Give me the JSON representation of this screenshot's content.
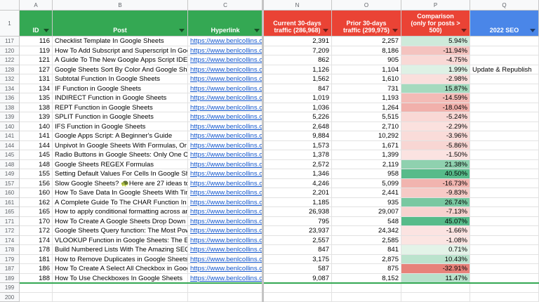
{
  "column_letters": [
    "A",
    "B",
    "C",
    "N",
    "O",
    "P",
    "Q"
  ],
  "header_row_number": "1",
  "headers": [
    "ID",
    "Post",
    "Hyperlink",
    "Current 30-days traffic (286,968)",
    "Prior 30-days traffic (299,975)",
    "Comparison (only for posts > 500)",
    "2022 SEO"
  ],
  "rows": [
    {
      "row_number": "117",
      "id": "116",
      "post": "Checklist Template In Google Sheets",
      "hyperlink": "https://www.benlcollins.com",
      "current": "2,391",
      "prior": "2,257",
      "comparison": "5.94%"
    },
    {
      "row_number": "120",
      "id": "119",
      "post": "How To Add Subscript and Superscript In Google Sheets",
      "hyperlink": "https://www.benlcollins.com",
      "current": "7,209",
      "prior": "8,186",
      "comparison": "-11.94%"
    },
    {
      "row_number": "122",
      "id": "121",
      "post": "A Guide To The New Google Apps Script IDE",
      "hyperlink": "https://www.benlcollins.com",
      "current": "862",
      "prior": "905",
      "comparison": "-4.75%"
    },
    {
      "row_number": "128",
      "id": "127",
      "post": "Google Sheets Sort By Color And Google Sheets Filter By Color",
      "hyperlink": "https://www.benlcollins.com",
      "current": "1,126",
      "prior": "1,104",
      "comparison": "1.99%",
      "seo": "Update & Republish"
    },
    {
      "row_number": "132",
      "id": "131",
      "post": "Subtotal Function In Google Sheets",
      "hyperlink": "https://www.benlcollins.com",
      "current": "1,562",
      "prior": "1,610",
      "comparison": "-2.98%"
    },
    {
      "row_number": "134",
      "id": "134",
      "post": "IF Function in Google Sheets",
      "hyperlink": "https://www.benlcollins.com",
      "current": "847",
      "prior": "731",
      "comparison": "15.87%"
    },
    {
      "row_number": "136",
      "id": "135",
      "post": "INDIRECT Function in Google Sheets",
      "hyperlink": "https://www.benlcollins.com",
      "current": "1,019",
      "prior": "1,193",
      "comparison": "-14.59%"
    },
    {
      "row_number": "138",
      "id": "138",
      "post": "REPT Function in Google Sheets",
      "hyperlink": "https://www.benlcollins.com",
      "current": "1,036",
      "prior": "1,264",
      "comparison": "-18.04%"
    },
    {
      "row_number": "139",
      "id": "139",
      "post": "SPLIT Function in Google Sheets",
      "hyperlink": "https://www.benlcollins.com",
      "current": "5,226",
      "prior": "5,515",
      "comparison": "-5.24%"
    },
    {
      "row_number": "140",
      "id": "140",
      "post": "IFS Function in Google Sheets",
      "hyperlink": "https://www.benlcollins.com",
      "current": "2,648",
      "prior": "2,710",
      "comparison": "-2.29%"
    },
    {
      "row_number": "141",
      "id": "141",
      "post": "Google Apps Script: A Beginner's Guide",
      "hyperlink": "https://www.benlcollins.com",
      "current": "9,884",
      "prior": "10,292",
      "comparison": "-3.96%"
    },
    {
      "row_number": "144",
      "id": "144",
      "post": "Unpivot In Google Sheets With Formulas, Or How To Turn Wide Data Into Tall Data",
      "hyperlink": "https://www.benlcollins.com",
      "current": "1,573",
      "prior": "1,671",
      "comparison": "-5.86%"
    },
    {
      "row_number": "145",
      "id": "145",
      "post": "Radio Buttons in Google Sheets: Only One Checkbox Checked",
      "hyperlink": "https://www.benlcollins.com",
      "current": "1,378",
      "prior": "1,399",
      "comparison": "-1.50%"
    },
    {
      "row_number": "148",
      "id": "148",
      "post": "Google Sheets REGEX Formulas",
      "hyperlink": "https://www.benlcollins.com",
      "current": "2,572",
      "prior": "2,119",
      "comparison": "21.38%"
    },
    {
      "row_number": "149",
      "id": "155",
      "post": "Setting Default Values For Cells In Google Sheets",
      "hyperlink": "https://www.benlcollins.com",
      "current": "1,346",
      "prior": "958",
      "comparison": "40.50%"
    },
    {
      "row_number": "157",
      "id": "156",
      "post": "Slow Google Sheets? 🐢Here are 27 ideas to try today",
      "hyperlink": "https://www.benlcollins.com",
      "current": "4,246",
      "prior": "5,099",
      "comparison": "-16.73%"
    },
    {
      "row_number": "160",
      "id": "160",
      "post": "How To Save Data In Google Sheets With Timestamps",
      "hyperlink": "https://www.benlcollins.com",
      "current": "2,201",
      "prior": "2,441",
      "comparison": "-9.83%"
    },
    {
      "row_number": "161",
      "id": "162",
      "post": "A Complete Guide To The CHAR Function In Google Sheets",
      "hyperlink": "https://www.benlcollins.com",
      "current": "1,185",
      "prior": "935",
      "comparison": "26.74%"
    },
    {
      "row_number": "165",
      "id": "165",
      "post": "How to apply conditional formatting across an entire row",
      "hyperlink": "https://www.benlcollins.com",
      "current": "26,938",
      "prior": "29,007",
      "comparison": "-7.13%"
    },
    {
      "row_number": "171",
      "id": "170",
      "post": "How To Create A Google Sheets Drop Down Menu",
      "hyperlink": "https://www.benlcollins.com",
      "current": "795",
      "prior": "548",
      "comparison": "45.07%"
    },
    {
      "row_number": "172",
      "id": "172",
      "post": "Google Sheets Query function: The Most Powerful Function",
      "hyperlink": "https://www.benlcollins.com",
      "current": "23,937",
      "prior": "24,342",
      "comparison": "-1.66%"
    },
    {
      "row_number": "174",
      "id": "174",
      "post": "VLOOKUP Function in Google Sheets: The Essential Guide",
      "hyperlink": "https://www.benlcollins.com",
      "current": "2,557",
      "prior": "2,585",
      "comparison": "-1.08%"
    },
    {
      "row_number": "178",
      "id": "178",
      "post": "Build Numbered Lists With The Amazing SEQUENCE Function",
      "hyperlink": "https://www.benlcollins.com",
      "current": "847",
      "prior": "841",
      "comparison": "0.71%"
    },
    {
      "row_number": "179",
      "id": "181",
      "post": "How to Remove Duplicates in Google Sheets",
      "hyperlink": "https://www.benlcollins.com",
      "current": "3,175",
      "prior": "2,875",
      "comparison": "10.43%"
    },
    {
      "row_number": "187",
      "id": "186",
      "post": "How To Create A Select All Checkbox in Google Sheets",
      "hyperlink": "https://www.benlcollins.com",
      "current": "587",
      "prior": "875",
      "comparison": "-32.91%"
    },
    {
      "row_number": "189",
      "id": "188",
      "post": "How To Use Checkboxes In Google Sheets",
      "hyperlink": "https://www.benlcollins.com",
      "current": "9,087",
      "prior": "8,152",
      "comparison": "11.47%"
    }
  ],
  "empty_row_numbers": [
    "199",
    "200"
  ]
}
